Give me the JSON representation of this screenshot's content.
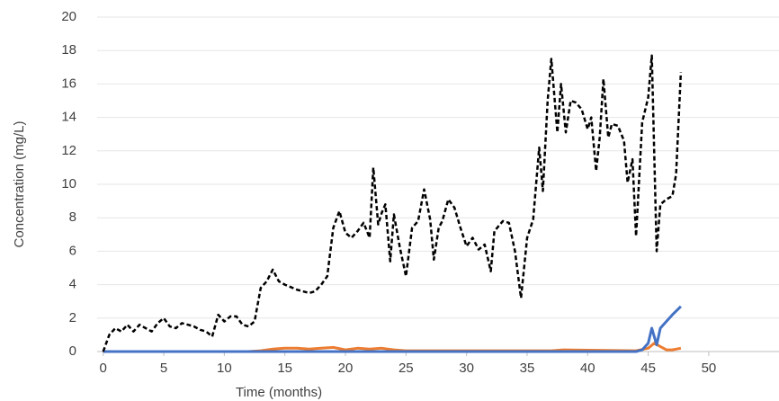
{
  "chart_data": {
    "type": "line",
    "xlabel": "Time (months)",
    "ylabel": "Concentration (mg/L)",
    "xlim": [
      -0.5,
      55.8
    ],
    "xticks": [
      0,
      5,
      10,
      15,
      20,
      25,
      30,
      35,
      40,
      45,
      50
    ],
    "ylim": [
      0,
      20
    ],
    "yticks": [
      0,
      2,
      4,
      6,
      8,
      10,
      12,
      14,
      16,
      18,
      20
    ],
    "grid": true,
    "series": [
      {
        "color": "#000000",
        "dash": true,
        "x": [
          0,
          0.5,
          1,
          1.5,
          2,
          2.5,
          3,
          3.5,
          4,
          4.5,
          5,
          5.5,
          6,
          6.5,
          7,
          7.5,
          8,
          8.5,
          9,
          9.5,
          10,
          10.5,
          11,
          11.5,
          12,
          12.5,
          13,
          13.5,
          14,
          14.5,
          15,
          16,
          17,
          17.5,
          18,
          18.5,
          19,
          19.5,
          20,
          20.5,
          21,
          21.5,
          22,
          22.3,
          22.7,
          23,
          23.3,
          23.7,
          24,
          24.5,
          25,
          25.5,
          26,
          26.5,
          27,
          27.3,
          27.7,
          28,
          28.5,
          29,
          29.5,
          30,
          30.5,
          31,
          31.5,
          32,
          32.3,
          33,
          33.5,
          34,
          34.5,
          35,
          35.5,
          36,
          36.3,
          36.7,
          37,
          37.5,
          37.8,
          38.2,
          38.6,
          39,
          39.5,
          40,
          40.3,
          40.7,
          41,
          41.3,
          41.7,
          42,
          42.5,
          43,
          43.3,
          43.7,
          44,
          44.5,
          45,
          45.3,
          45.7,
          46,
          46.5,
          47,
          47.3,
          47.7
        ],
        "values": [
          0,
          1.0,
          1.4,
          1.2,
          1.6,
          1.2,
          1.6,
          1.4,
          1.2,
          1.7,
          2.0,
          1.5,
          1.4,
          1.7,
          1.6,
          1.5,
          1.3,
          1.2,
          0.9,
          2.2,
          1.8,
          2.1,
          2.1,
          1.6,
          1.5,
          1.8,
          3.8,
          4.2,
          4.9,
          4.2,
          4.0,
          3.7,
          3.5,
          3.6,
          4.0,
          4.5,
          7.4,
          8.4,
          7.1,
          6.8,
          7.2,
          7.7,
          6.8,
          11.0,
          7.6,
          8.3,
          8.8,
          5.4,
          8.2,
          6.2,
          4.5,
          7.4,
          7.8,
          9.7,
          7.9,
          5.5,
          7.4,
          7.8,
          9.1,
          8.6,
          7.4,
          6.3,
          6.8,
          6.1,
          6.4,
          4.8,
          7.2,
          7.8,
          7.7,
          6.0,
          3.2,
          6.8,
          7.9,
          12.2,
          9.6,
          15.0,
          17.5,
          13.1,
          16.0,
          13.1,
          15.0,
          14.9,
          14.5,
          13.3,
          14.0,
          10.8,
          12.8,
          16.3,
          12.8,
          13.6,
          13.5,
          12.6,
          10.1,
          11.5,
          6.9,
          13.7,
          15.2,
          17.7,
          6.0,
          8.8,
          9.1,
          9.3,
          10.6,
          16.7
        ]
      },
      {
        "color": "#4472c4",
        "dash": false,
        "x": [
          0,
          44,
          44.5,
          45,
          45.3,
          45.7,
          46,
          46.5,
          47,
          47.7
        ],
        "values": [
          0,
          0,
          0.1,
          0.5,
          1.4,
          0.4,
          1.4,
          1.8,
          2.2,
          2.7
        ]
      },
      {
        "color": "#ed7d31",
        "dash": false,
        "x": [
          0,
          12,
          13,
          14,
          15,
          16,
          17,
          18,
          19,
          20,
          21,
          22,
          23,
          24,
          25,
          30,
          35,
          37,
          38,
          44,
          45,
          45.5,
          46,
          46.5,
          47,
          47.7
        ],
        "values": [
          0,
          0,
          0.05,
          0.15,
          0.2,
          0.2,
          0.15,
          0.2,
          0.25,
          0.1,
          0.2,
          0.15,
          0.2,
          0.1,
          0.05,
          0.05,
          0.05,
          0.05,
          0.1,
          0.05,
          0.2,
          0.5,
          0.3,
          0.1,
          0.1,
          0.2
        ]
      }
    ]
  }
}
